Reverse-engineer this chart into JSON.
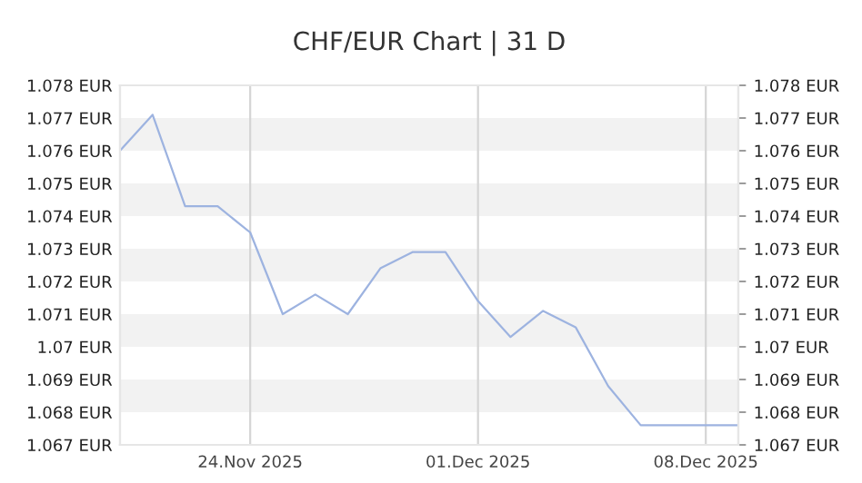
{
  "chart_data": {
    "type": "line",
    "title": "CHF/EUR Chart | 31 D",
    "x": [
      "2025-11-20",
      "2025-11-21",
      "2025-11-22",
      "2025-11-23",
      "2025-11-24",
      "2025-11-25",
      "2025-11-26",
      "2025-11-27",
      "2025-11-28",
      "2025-11-29",
      "2025-11-30",
      "2025-12-01",
      "2025-12-02",
      "2025-12-03",
      "2025-12-04",
      "2025-12-05",
      "2025-12-06",
      "2025-12-07",
      "2025-12-08",
      "2025-12-09"
    ],
    "series": [
      {
        "color": "#9db3e0",
        "values": [
          1.076,
          1.0771,
          1.0743,
          1.0743,
          1.0735,
          1.071,
          1.0716,
          1.071,
          1.0724,
          1.0729,
          1.0729,
          1.0714,
          1.0703,
          1.0711,
          1.0706,
          1.0688,
          1.0676,
          1.0676,
          1.0676,
          1.0676
        ]
      }
    ],
    "xlim": [
      "2025-11-20",
      "2025-12-09"
    ],
    "xticks": [
      {
        "value": "2025-11-24",
        "label": "24.Nov 2025"
      },
      {
        "value": "2025-12-01",
        "label": "01.Dec 2025"
      },
      {
        "value": "2025-12-08",
        "label": "08.Dec 2025"
      }
    ],
    "ylim": [
      1.067,
      1.078
    ],
    "yticks": [
      {
        "value": 1.067,
        "label": "1.067 EUR"
      },
      {
        "value": 1.068,
        "label": "1.068 EUR"
      },
      {
        "value": 1.069,
        "label": "1.069 EUR"
      },
      {
        "value": 1.07,
        "label": "1.07 EUR"
      },
      {
        "value": 1.071,
        "label": "1.071 EUR"
      },
      {
        "value": 1.072,
        "label": "1.072 EUR"
      },
      {
        "value": 1.073,
        "label": "1.073 EUR"
      },
      {
        "value": 1.074,
        "label": "1.074 EUR"
      },
      {
        "value": 1.075,
        "label": "1.075 EUR"
      },
      {
        "value": 1.076,
        "label": "1.076 EUR"
      },
      {
        "value": 1.077,
        "label": "1.077 EUR"
      },
      {
        "value": 1.078,
        "label": "1.078 EUR"
      }
    ],
    "y2lim": [
      1.067,
      1.078
    ],
    "y2ticks": [
      {
        "value": 1.067,
        "label": "1.067 EUR"
      },
      {
        "value": 1.068,
        "label": "1.068 EUR"
      },
      {
        "value": 1.069,
        "label": "1.069 EUR"
      },
      {
        "value": 1.07,
        "label": "1.07 EUR"
      },
      {
        "value": 1.071,
        "label": "1.071 EUR"
      },
      {
        "value": 1.072,
        "label": "1.072 EUR"
      },
      {
        "value": 1.073,
        "label": "1.073 EUR"
      },
      {
        "value": 1.074,
        "label": "1.074 EUR"
      },
      {
        "value": 1.075,
        "label": "1.075 EUR"
      },
      {
        "value": 1.076,
        "label": "1.076 EUR"
      },
      {
        "value": 1.077,
        "label": "1.077 EUR"
      },
      {
        "value": 1.078,
        "label": "1.078 EUR"
      }
    ],
    "grid": true,
    "marker": "none",
    "line_style": "solid"
  }
}
